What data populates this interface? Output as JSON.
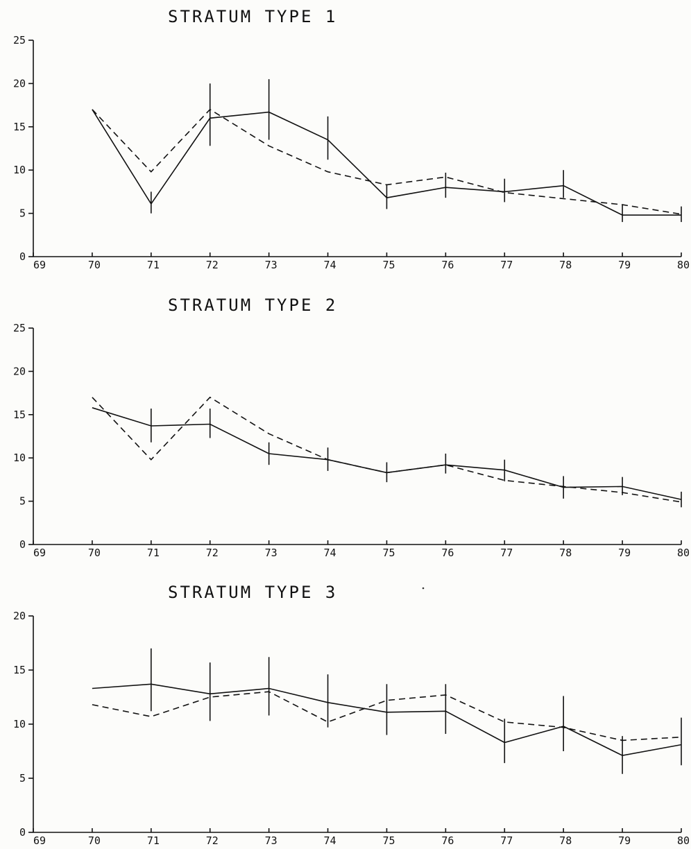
{
  "colors": {
    "ink": "#111111",
    "background": "#fcfcfa"
  },
  "chart_data": [
    {
      "type": "line",
      "title": "STRATUM TYPE 1",
      "xlabel": "",
      "ylabel": "",
      "x": [
        70,
        71,
        72,
        73,
        74,
        75,
        76,
        77,
        78,
        79,
        80
      ],
      "xlim": [
        69,
        80
      ],
      "ylim": [
        0,
        25
      ],
      "xticks": [
        69,
        70,
        71,
        72,
        73,
        74,
        75,
        76,
        77,
        78,
        79,
        80
      ],
      "yticks": [
        0,
        5,
        10,
        15,
        20,
        25
      ],
      "grid": false,
      "series": [
        {
          "style": "solid",
          "values": [
            17,
            6.1,
            16,
            16.7,
            13.5,
            6.8,
            8,
            7.5,
            8.2,
            4.8,
            4.8
          ]
        },
        {
          "style": "dashed",
          "values": [
            17,
            9.8,
            17,
            12.8,
            9.8,
            8.3,
            9.2,
            7.4,
            6.7,
            6,
            4.9
          ]
        }
      ],
      "error_bars": [
        {
          "x": 71,
          "low": 5,
          "high": 7.5
        },
        {
          "x": 72,
          "low": 12.8,
          "high": 20
        },
        {
          "x": 73,
          "low": 13.5,
          "high": 20.5
        },
        {
          "x": 74,
          "low": 11.2,
          "high": 16.2
        },
        {
          "x": 75,
          "low": 5.5,
          "high": 8.3
        },
        {
          "x": 76,
          "low": 6.8,
          "high": 9.7
        },
        {
          "x": 77,
          "low": 6.3,
          "high": 9
        },
        {
          "x": 78,
          "low": 6.8,
          "high": 10
        },
        {
          "x": 79,
          "low": 4,
          "high": 6
        },
        {
          "x": 80,
          "low": 4,
          "high": 5.8
        }
      ]
    },
    {
      "type": "line",
      "title": "STRATUM TYPE 2",
      "xlabel": "",
      "ylabel": "",
      "x": [
        70,
        71,
        72,
        73,
        74,
        75,
        76,
        77,
        78,
        79,
        80
      ],
      "xlim": [
        69,
        80
      ],
      "ylim": [
        0,
        25
      ],
      "xticks": [
        69,
        70,
        71,
        72,
        73,
        74,
        75,
        76,
        77,
        78,
        79,
        80
      ],
      "yticks": [
        0,
        5,
        10,
        15,
        20,
        25
      ],
      "grid": false,
      "series": [
        {
          "style": "solid",
          "values": [
            15.8,
            13.7,
            13.9,
            10.5,
            9.8,
            8.3,
            9.2,
            8.6,
            6.6,
            6.7,
            5.2
          ]
        },
        {
          "style": "dashed",
          "values": [
            17,
            9.8,
            17,
            12.8,
            9.8,
            8.3,
            9.2,
            7.4,
            6.7,
            6,
            4.9
          ]
        }
      ],
      "error_bars": [
        {
          "x": 71,
          "low": 11.8,
          "high": 15.7
        },
        {
          "x": 72,
          "low": 12.3,
          "high": 15.7
        },
        {
          "x": 73,
          "low": 9.2,
          "high": 11.8
        },
        {
          "x": 74,
          "low": 8.5,
          "high": 11.2
        },
        {
          "x": 75,
          "low": 7.2,
          "high": 9.5
        },
        {
          "x": 76,
          "low": 8.2,
          "high": 10.5
        },
        {
          "x": 77,
          "low": 7.3,
          "high": 9.8
        },
        {
          "x": 78,
          "low": 5.3,
          "high": 7.9
        },
        {
          "x": 79,
          "low": 5.7,
          "high": 7.8
        },
        {
          "x": 80,
          "low": 4.3,
          "high": 6.1
        }
      ]
    },
    {
      "type": "line",
      "title": "STRATUM TYPE 3",
      "xlabel": "",
      "ylabel": "",
      "x": [
        70,
        71,
        72,
        73,
        74,
        75,
        76,
        77,
        78,
        79,
        80
      ],
      "xlim": [
        69,
        80
      ],
      "ylim": [
        0,
        20
      ],
      "xticks": [
        69,
        70,
        71,
        72,
        73,
        74,
        75,
        76,
        77,
        78,
        79,
        80
      ],
      "yticks": [
        0,
        5,
        10,
        15,
        20
      ],
      "grid": false,
      "series": [
        {
          "style": "solid",
          "values": [
            13.3,
            13.7,
            12.8,
            13.3,
            12,
            11.1,
            11.2,
            8.3,
            9.8,
            7.1,
            8.1
          ]
        },
        {
          "style": "dashed",
          "values": [
            11.8,
            10.7,
            12.5,
            13,
            10.2,
            12.2,
            12.7,
            10.2,
            9.7,
            8.5,
            8.8
          ]
        }
      ],
      "error_bars": [
        {
          "x": 71,
          "low": 11.2,
          "high": 17
        },
        {
          "x": 72,
          "low": 10.3,
          "high": 15.7
        },
        {
          "x": 73,
          "low": 10.8,
          "high": 16.2
        },
        {
          "x": 74,
          "low": 9.7,
          "high": 14.6
        },
        {
          "x": 75,
          "low": 9,
          "high": 13.7
        },
        {
          "x": 76,
          "low": 9.1,
          "high": 13.7
        },
        {
          "x": 77,
          "low": 6.4,
          "high": 10.5
        },
        {
          "x": 78,
          "low": 7.5,
          "high": 12.6
        },
        {
          "x": 79,
          "low": 5.4,
          "high": 8.9
        },
        {
          "x": 80,
          "low": 6.2,
          "high": 10.6
        }
      ]
    }
  ]
}
